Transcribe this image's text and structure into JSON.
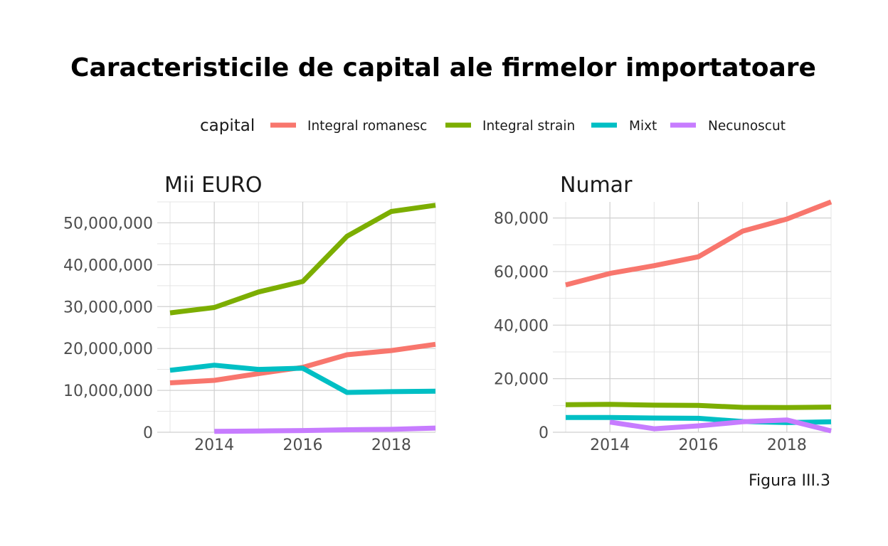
{
  "title": "Caracteristicile de capital ale firmelor importatoare",
  "caption": "Figura III.3",
  "legend": {
    "title": "capital",
    "entries": [
      {
        "label": "Integral romanesc",
        "color": "#F8766D"
      },
      {
        "label": "Integral strain",
        "color": "#7CAE00"
      },
      {
        "label": "Mixt",
        "color": "#00BFC4"
      },
      {
        "label": "Necunoscut",
        "color": "#C77CFF"
      }
    ]
  },
  "chart_data": [
    {
      "type": "line",
      "title": "Mii EURO",
      "xlim": [
        2013,
        2019
      ],
      "ylim": [
        0,
        55000000
      ],
      "x_ticks": [
        2014,
        2016,
        2018
      ],
      "x_tick_labels": [
        "2014",
        "2016",
        "2018"
      ],
      "y_ticks": [
        0,
        10000000,
        20000000,
        30000000,
        40000000,
        50000000
      ],
      "y_tick_labels": [
        "0",
        "10,000,000",
        "20,000,000",
        "30,000,000",
        "40,000,000",
        "50,000,000"
      ],
      "grid": true,
      "series": [
        {
          "name": "Integral romanesc",
          "color": "#F8766D",
          "x": [
            2013,
            2014,
            2015,
            2016,
            2017,
            2018,
            2019
          ],
          "values": [
            11800000,
            12400000,
            14000000,
            15500000,
            18500000,
            19500000,
            21000000
          ]
        },
        {
          "name": "Integral strain",
          "color": "#7CAE00",
          "x": [
            2013,
            2014,
            2015,
            2016,
            2017,
            2018,
            2019
          ],
          "values": [
            28500000,
            29800000,
            33500000,
            36000000,
            46800000,
            52700000,
            54200000
          ]
        },
        {
          "name": "Mixt",
          "color": "#00BFC4",
          "x": [
            2013,
            2014,
            2015,
            2016,
            2017,
            2018,
            2019
          ],
          "values": [
            14800000,
            16000000,
            15000000,
            15300000,
            9500000,
            9700000,
            9800000
          ]
        },
        {
          "name": "Necunoscut",
          "color": "#C77CFF",
          "x": [
            2014,
            2015,
            2016,
            2017,
            2018,
            2019
          ],
          "values": [
            200000,
            300000,
            400000,
            600000,
            700000,
            1000000
          ]
        }
      ]
    },
    {
      "type": "line",
      "title": "Numar",
      "xlim": [
        2013,
        2019
      ],
      "ylim": [
        0,
        86000
      ],
      "x_ticks": [
        2014,
        2016,
        2018
      ],
      "x_tick_labels": [
        "2014",
        "2016",
        "2018"
      ],
      "y_ticks": [
        0,
        20000,
        40000,
        60000,
        80000
      ],
      "y_tick_labels": [
        "0",
        "20,000",
        "40,000",
        "60,000",
        "80,000"
      ],
      "grid": true,
      "series": [
        {
          "name": "Integral romanesc",
          "color": "#F8766D",
          "x": [
            2013,
            2014,
            2015,
            2016,
            2017,
            2018,
            2019
          ],
          "values": [
            55000,
            59300,
            62200,
            65500,
            75100,
            79600,
            86000
          ]
        },
        {
          "name": "Integral strain",
          "color": "#7CAE00",
          "x": [
            2013,
            2014,
            2015,
            2016,
            2017,
            2018,
            2019
          ],
          "values": [
            10300,
            10400,
            10100,
            10000,
            9300,
            9200,
            9400
          ]
        },
        {
          "name": "Mixt",
          "color": "#00BFC4",
          "x": [
            2013,
            2014,
            2015,
            2016,
            2017,
            2018,
            2019
          ],
          "values": [
            5500,
            5500,
            5300,
            5200,
            4000,
            3600,
            3900
          ]
        },
        {
          "name": "Necunoscut",
          "color": "#C77CFF",
          "x": [
            2014,
            2015,
            2016,
            2017,
            2018,
            2019
          ],
          "values": [
            3800,
            1300,
            2400,
            3900,
            4600,
            500
          ]
        }
      ]
    }
  ]
}
